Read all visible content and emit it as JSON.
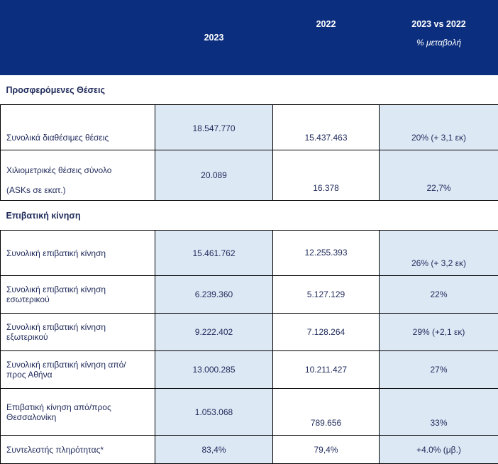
{
  "header": {
    "col1": "",
    "col2": "2023",
    "col3": "2022",
    "col4_line1": "2023 vs 2022",
    "col4_line2": "% μεταβολή"
  },
  "sections": {
    "seats_title": "Προσφερόμενες Θέσεις",
    "traffic_title": "Επιβατική κίνηση"
  },
  "rows": [
    {
      "label": "Συνολικά διαθέσιμες θέσεις",
      "v2023": "18.547.770",
      "v2022": "15.437.463",
      "change": "20% (+ 3,1 εκ)"
    },
    {
      "label_line1": "Χιλιομετρικές θέσεις σύνολο",
      "label_line2": "(ASKs σε εκατ.)",
      "v2023": "20.089",
      "v2022": "16.378",
      "change": "22,7%"
    },
    {
      "label": "Συνολική επιβατική κίνηση",
      "v2023": "15.461.762",
      "v2022": "12.255.393",
      "change": "26% (+ 3,2 εκ)"
    },
    {
      "label_line1": "Συνολική επιβατική κίνηση",
      "label_line2": "εσωτερικού",
      "v2023": "6.239.360",
      "v2022": "5.127.129",
      "change": "22%"
    },
    {
      "label_line1": "Συνολική επιβατική κίνηση",
      "label_line2": "εξωτερικού",
      "v2023": "9.222.402",
      "v2022": "7.128.264",
      "change": "29% (+2,1 εκ)"
    },
    {
      "label_line1": "Συνολική επιβατική κίνηση από/",
      "label_line2": "προς Αθήνα",
      "v2023": "13.000.285",
      "v2022": "10.211.427",
      "change": "27%"
    },
    {
      "label_line1": "Επιβατική κίνηση  από/προς",
      "label_line2": "Θεσσαλονίκη",
      "v2023": "1.053.068",
      "v2022": "789.656",
      "change": "33%"
    },
    {
      "label": "Συντελεστής πληρότητας*",
      "v2023": "83,4%",
      "v2022": "79,4%",
      "change": "+4.0% (μβ.)"
    }
  ]
}
